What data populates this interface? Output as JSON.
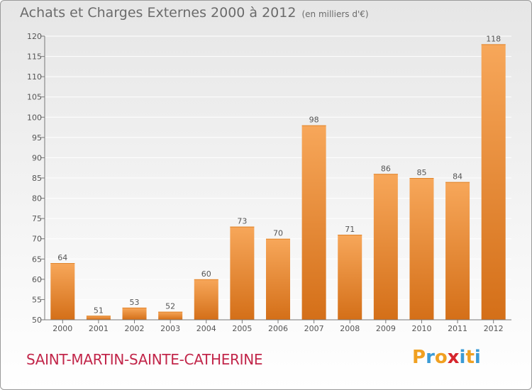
{
  "header": {
    "title": "Achats et Charges Externes 2000 à 2012",
    "subtitle": "(en milliers d'€)"
  },
  "footer": {
    "commune": "SAINT-MARTIN-SAINTE-CATHERINE",
    "logo": [
      "P",
      "r",
      "o",
      "x",
      "i",
      "t",
      "i"
    ]
  },
  "colors": {
    "bar_light": "#f7a75a",
    "bar_dark": "#d46f18",
    "label": "#555555",
    "grid": "#ffffff",
    "commune": "#c2264a",
    "logo_letters": [
      "#f0a021",
      "#3b9bd6",
      "#f0a021",
      "#d6262d",
      "#3b9bd6",
      "#f0a021",
      "#3b9bd6"
    ]
  },
  "chart_data": {
    "type": "bar",
    "categories": [
      "2000",
      "2001",
      "2002",
      "2003",
      "2004",
      "2005",
      "2006",
      "2007",
      "2008",
      "2009",
      "2010",
      "2011",
      "2012"
    ],
    "values": [
      64,
      51,
      53,
      52,
      60,
      73,
      70,
      98,
      71,
      86,
      85,
      84,
      118
    ],
    "ylim": [
      50,
      120
    ],
    "yticks": [
      50,
      55,
      60,
      65,
      70,
      75,
      80,
      85,
      90,
      95,
      100,
      105,
      110,
      115,
      120
    ],
    "grid": true
  }
}
